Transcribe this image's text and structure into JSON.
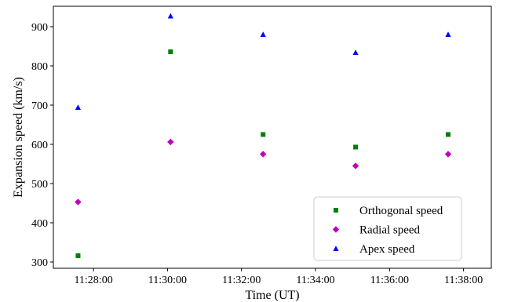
{
  "chart_data": {
    "type": "scatter",
    "xlabel": "Time (UT)",
    "ylabel": "Expansion speed (km/s)",
    "xlim": [
      "11:26:55",
      "11:38:45"
    ],
    "ylim": [
      284,
      952
    ],
    "x_ticks": [
      "11:28:00",
      "11:30:00",
      "11:32:00",
      "11:34:00",
      "11:36:00",
      "11:38:00"
    ],
    "y_ticks": [
      300,
      400,
      500,
      600,
      700,
      800,
      900
    ],
    "x": [
      "11:27:35",
      "11:30:05",
      "11:32:35",
      "11:35:05",
      "11:37:35"
    ],
    "series": [
      {
        "name": "Orthogonal speed",
        "marker": "square",
        "color": "#008000",
        "values": [
          316,
          836,
          625,
          593,
          625
        ]
      },
      {
        "name": "Radial speed",
        "marker": "diamond",
        "color": "#bf00bf",
        "values": [
          453,
          606,
          575,
          545,
          575
        ]
      },
      {
        "name": "Apex speed",
        "marker": "triangle",
        "color": "#0000ff",
        "values": [
          694,
          927,
          880,
          834,
          880
        ]
      }
    ],
    "grid": false,
    "legend": "lower-right"
  }
}
